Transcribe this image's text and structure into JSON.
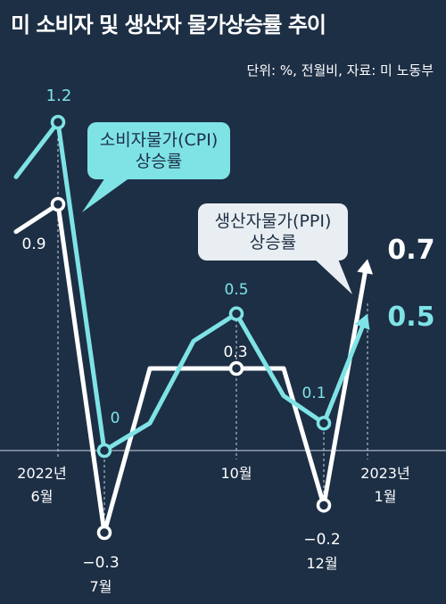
{
  "title": "미 소비자 및 생산자 물가상승률 추이",
  "subtitle": "단위: %, 전월비, 자료: 미 노동부",
  "colors": {
    "background": "#1d2f45",
    "cpi": "#7fe3e6",
    "ppi": "#ffffff",
    "ppi_callout": "#e9eef2"
  },
  "chart_data": {
    "type": "line",
    "x": [
      "2022-05",
      "2022-06",
      "2022-07",
      "2022-08",
      "2022-09",
      "2022-10",
      "2022-11",
      "2022-12",
      "2023-01"
    ],
    "x_tick_labels": [
      {
        "x": "2022-06",
        "lines": [
          "2022년",
          "6월"
        ]
      },
      {
        "x": "2022-10",
        "lines": [
          "10월"
        ]
      },
      {
        "x": "2023-01",
        "lines": [
          "2023년",
          "1월"
        ]
      }
    ],
    "series": [
      {
        "name": "소비자물가(CPI) 상승률",
        "name_lines": [
          "소비자물가(CPI)",
          "상승률"
        ],
        "values": [
          1.0,
          1.2,
          0.0,
          0.1,
          0.4,
          0.5,
          0.2,
          0.1,
          0.5
        ]
      },
      {
        "name": "생산자물가(PPI) 상승률",
        "name_lines": [
          "생산자물가(PPI)",
          "상승률"
        ],
        "values": [
          0.8,
          0.9,
          -0.3,
          0.3,
          0.3,
          0.3,
          0.3,
          -0.2,
          0.7
        ]
      }
    ],
    "data_labels": {
      "cpi": [
        {
          "x": "2022-06",
          "text": "1.2"
        },
        {
          "x": "2022-07",
          "text": "0"
        },
        {
          "x": "2022-10",
          "text": "0.5"
        },
        {
          "x": "2022-12",
          "text": "0.1"
        },
        {
          "x": "2023-01",
          "text": "0.5"
        }
      ],
      "ppi": [
        {
          "x": "2022-06",
          "text": "0.9"
        },
        {
          "x": "2022-07",
          "text": "−0.3",
          "sub": "7월"
        },
        {
          "x": "2022-10",
          "text": "0.3"
        },
        {
          "x": "2022-12",
          "text": "−0.2",
          "sub": "12월"
        },
        {
          "x": "2023-01",
          "text": "0.7"
        }
      ]
    },
    "ylim": [
      -0.45,
      1.45
    ],
    "grid": false
  }
}
